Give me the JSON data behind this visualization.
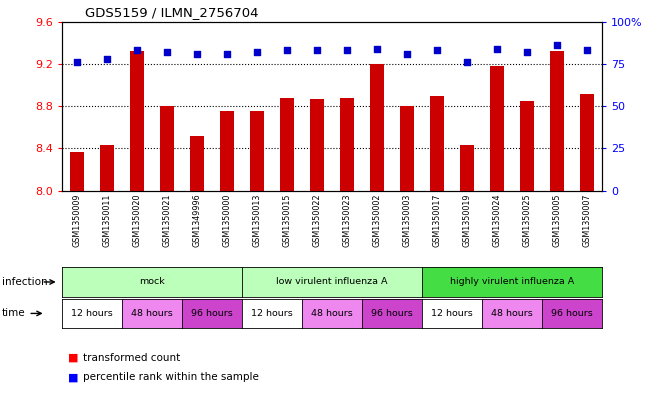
{
  "title": "GDS5159 / ILMN_2756704",
  "samples": [
    "GSM1350009",
    "GSM1350011",
    "GSM1350020",
    "GSM1350021",
    "GSM1349996",
    "GSM1350000",
    "GSM1350013",
    "GSM1350015",
    "GSM1350022",
    "GSM1350023",
    "GSM1350002",
    "GSM1350003",
    "GSM1350017",
    "GSM1350019",
    "GSM1350024",
    "GSM1350025",
    "GSM1350005",
    "GSM1350007"
  ],
  "transformed_counts": [
    8.37,
    8.43,
    9.32,
    8.8,
    8.52,
    8.75,
    8.75,
    8.88,
    8.87,
    8.88,
    9.2,
    8.8,
    8.9,
    8.43,
    9.18,
    8.85,
    9.32,
    8.91
  ],
  "percentile_ranks": [
    76,
    78,
    83,
    82,
    81,
    81,
    82,
    83,
    83,
    83,
    84,
    81,
    83,
    76,
    84,
    82,
    86,
    83
  ],
  "ylim_left": [
    8.0,
    9.6
  ],
  "ylim_right": [
    0,
    100
  ],
  "yticks_left": [
    8.0,
    8.4,
    8.8,
    9.2,
    9.6
  ],
  "yticks_right": [
    0,
    25,
    50,
    75,
    100
  ],
  "bar_color": "#cc0000",
  "dot_color": "#0000cc",
  "inf_group_data": [
    {
      "label": "mock",
      "start": 0,
      "end": 6,
      "color": "#bbffbb"
    },
    {
      "label": "low virulent influenza A",
      "start": 6,
      "end": 12,
      "color": "#bbffbb"
    },
    {
      "label": "highly virulent influenza A",
      "start": 12,
      "end": 18,
      "color": "#44dd44"
    }
  ],
  "time_group_data": [
    {
      "label": "12 hours",
      "start": 0,
      "end": 2,
      "color": "#ffffff"
    },
    {
      "label": "48 hours",
      "start": 2,
      "end": 4,
      "color": "#ee88ee"
    },
    {
      "label": "96 hours",
      "start": 4,
      "end": 6,
      "color": "#cc44cc"
    },
    {
      "label": "12 hours",
      "start": 6,
      "end": 8,
      "color": "#ffffff"
    },
    {
      "label": "48 hours",
      "start": 8,
      "end": 10,
      "color": "#ee88ee"
    },
    {
      "label": "96 hours",
      "start": 10,
      "end": 12,
      "color": "#cc44cc"
    },
    {
      "label": "12 hours",
      "start": 12,
      "end": 14,
      "color": "#ffffff"
    },
    {
      "label": "48 hours",
      "start": 14,
      "end": 16,
      "color": "#ee88ee"
    },
    {
      "label": "96 hours",
      "start": 16,
      "end": 18,
      "color": "#cc44cc"
    }
  ]
}
